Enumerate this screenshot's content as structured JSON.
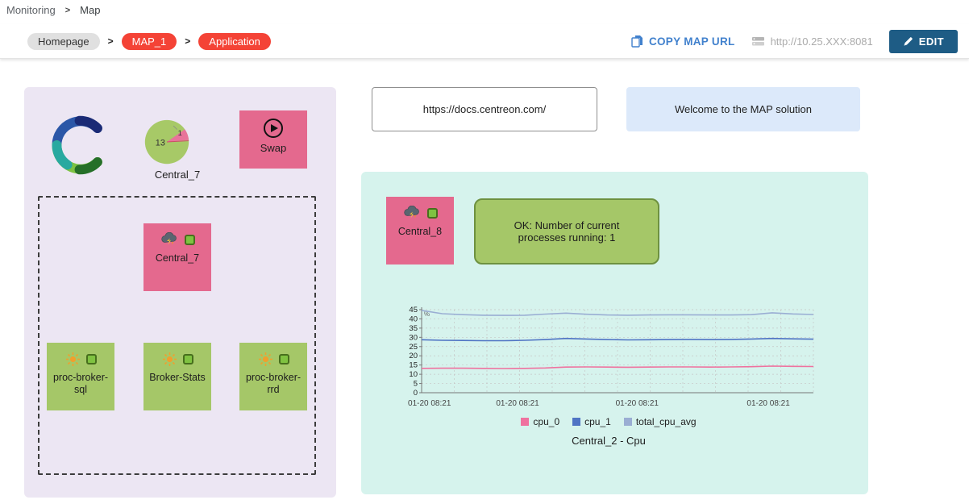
{
  "breadcrumb": {
    "section": "Monitoring",
    "separator": ">",
    "page": "Map"
  },
  "toolbar": {
    "path": [
      {
        "label": "Homepage",
        "type": "gray"
      },
      {
        "label": "MAP_1",
        "type": "red"
      },
      {
        "label": "Application",
        "type": "red"
      }
    ],
    "separator": ">",
    "copy_map_url": "COPY MAP URL",
    "server_url": "http://10.25.XXX:8081",
    "edit": "EDIT"
  },
  "left_panel": {
    "pie": {
      "label": "Central_7",
      "value_main": "13",
      "value_slice": "1"
    },
    "swap": {
      "label": "Swap"
    },
    "central7": {
      "label": "Central_7"
    },
    "green_nodes": [
      {
        "label": "proc-broker-sql"
      },
      {
        "label": "Broker-Stats"
      },
      {
        "label": "proc-broker-rrd"
      }
    ]
  },
  "right_top": {
    "docs_link": "https://docs.centreon.com/",
    "welcome": "Welcome to the MAP solution"
  },
  "right_panel": {
    "central8": {
      "label": "Central_8"
    },
    "status_box": "OK: Number of current processes running: 1"
  },
  "chart_data": {
    "type": "line",
    "title": "Central_2 - Cpu",
    "xlabel": "",
    "ylabel": "%",
    "ylim": [
      0,
      45
    ],
    "yticks": [
      0,
      5,
      10,
      15,
      20,
      25,
      30,
      35,
      40,
      45
    ],
    "x_labels": [
      "01-20 08:21",
      "01-20 08:21",
      "01-20 08:21",
      "01-20 08:21"
    ],
    "grid": true,
    "legend_position": "bottom",
    "series": [
      {
        "name": "cpu_0",
        "color": "#ef729f",
        "values": [
          13.2,
          13.3,
          13.3,
          13.2,
          13.1,
          13.2,
          13.4,
          13.9,
          14.0,
          13.9,
          13.8,
          13.9,
          14.0,
          14.0,
          13.9,
          14.0,
          14.1,
          14.4,
          14.3,
          14.2
        ]
      },
      {
        "name": "cpu_1",
        "color": "#4f74c4",
        "values": [
          28.7,
          28.4,
          28.3,
          28.2,
          28.2,
          28.4,
          28.8,
          29.4,
          29.1,
          28.8,
          28.6,
          28.7,
          28.8,
          28.9,
          28.8,
          28.9,
          29.1,
          29.4,
          29.2,
          29.0
        ]
      },
      {
        "name": "total_cpu_avg",
        "color": "#9aaed3",
        "values": [
          44.6,
          42.8,
          42.3,
          42.0,
          41.9,
          42.0,
          42.6,
          43.1,
          42.5,
          42.1,
          42.0,
          42.1,
          42.2,
          42.2,
          42.1,
          42.1,
          42.3,
          43.3,
          42.7,
          42.4
        ]
      }
    ]
  },
  "colors": {
    "node_pink": "#e4698e",
    "node_green": "#a5c768",
    "status_green": "#7fc241",
    "panel_lavender": "#ece6f3",
    "panel_cyan": "#d6f3ed",
    "welcome_blue": "#dce9fa",
    "pill_red": "#f44336",
    "link_blue": "#4181cd",
    "edit_navy": "#1e5c85"
  },
  "icons": {
    "copy-icon": "⧉",
    "server-icon": "▤",
    "edit-icon": "✎",
    "play-icon": "▶",
    "storm-icon": "⛈",
    "sun-icon": "☀",
    "status-ok-icon": "■",
    "chevron-icon": ">"
  }
}
